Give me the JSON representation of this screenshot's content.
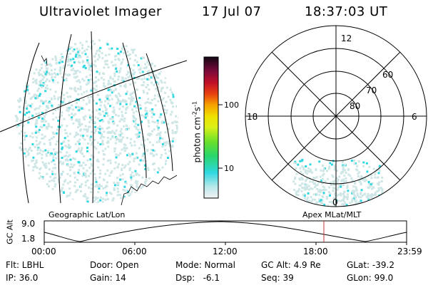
{
  "header": {
    "instrument": "Ultraviolet Imager",
    "date": "17 Jul 07",
    "time": "18:37:03 UT"
  },
  "geo_map": {
    "caption": "Geographic Lat/Lon"
  },
  "colorbar": {
    "label": "photon cm^-2 s^-1",
    "ticks": [
      "100",
      "10"
    ],
    "scale": "log"
  },
  "polar_plot": {
    "caption": "Apex MLat/MLT",
    "mlt_labels": [
      "12",
      "18",
      "6",
      "0"
    ],
    "mlat_labels": [
      "60",
      "70",
      "80"
    ]
  },
  "altitude_plot": {
    "ylabel": "GC Alt",
    "yticks": [
      "9.0",
      "1.8"
    ],
    "xticks": [
      "00:00",
      "06:00",
      "12:00",
      "18:00",
      "23:59"
    ],
    "current_time_marker": "18:37"
  },
  "status": {
    "flt": "Flt: LBHL",
    "ip": "IP: 36.0",
    "door": "Door: Open",
    "gain": "Gain: 14",
    "mode": "Mode: Normal",
    "dsp": "Dsp:   -6.1",
    "gc_alt": "GC Alt: 4.9 Re",
    "seq": "Seq: 39",
    "glat": "GLat: -39.2",
    "glon": "GLon: 99.0"
  },
  "colors": {
    "aurora_primary": "#2fd8e0",
    "aurora_faint": "#cfe6e6",
    "marker": "#c0393b"
  }
}
